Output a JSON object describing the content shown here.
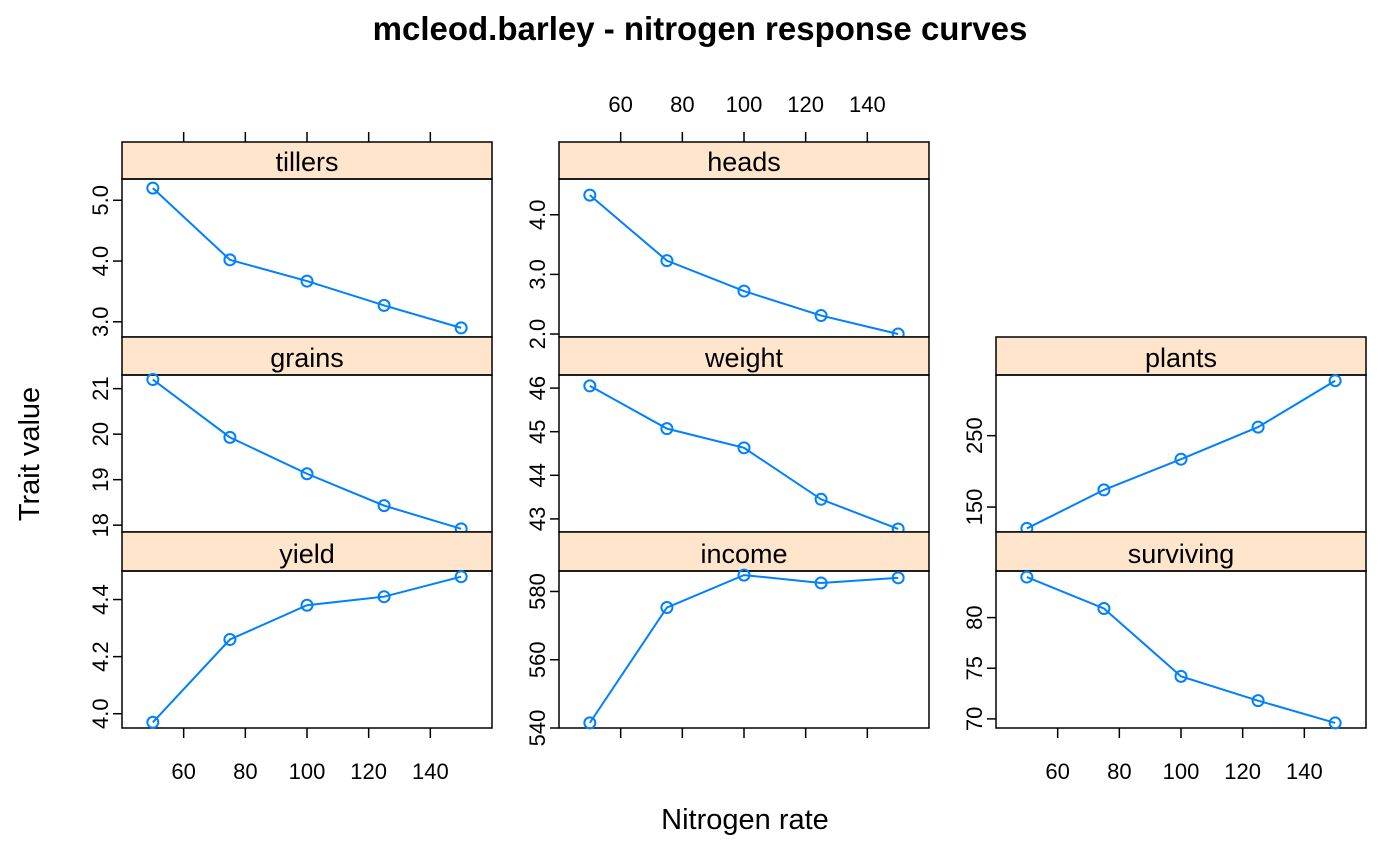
{
  "title": "mcleod.barley - nitrogen response curves",
  "xlabel": "Nitrogen rate",
  "ylabel": "Trait value",
  "colors": {
    "series": "#0080ff",
    "strip": "#ffe5cc",
    "frame": "#000000"
  },
  "chart_data": {
    "type": "line",
    "layout": "lattice 3x3 panels",
    "x": [
      50,
      75,
      100,
      125,
      150
    ],
    "x_ticks": [
      "60",
      "80",
      "100",
      "120",
      "140"
    ],
    "xlim": [
      40,
      160
    ],
    "panels": [
      {
        "name": "tillers",
        "values": [
          5.2,
          4.02,
          3.67,
          3.27,
          2.9
        ],
        "ylim": [
          2.75,
          5.35
        ],
        "y_ticks": [
          3.0,
          4.0,
          5.0
        ],
        "y_tick_labels": [
          "3.0",
          "4.0",
          "5.0"
        ]
      },
      {
        "name": "heads",
        "values": [
          4.33,
          3.23,
          2.72,
          2.31,
          2.0
        ],
        "ylim": [
          1.95,
          4.6
        ],
        "y_ticks": [
          2.0,
          3.0,
          4.0
        ],
        "y_tick_labels": [
          "2.0",
          "3.0",
          "4.0"
        ]
      },
      {
        "name": "grains",
        "values": [
          21.2,
          19.93,
          19.13,
          18.43,
          17.92
        ],
        "ylim": [
          17.85,
          21.3
        ],
        "y_ticks": [
          18,
          19,
          20,
          21
        ],
        "y_tick_labels": [
          "18",
          "19",
          "20",
          "21"
        ]
      },
      {
        "name": "weight",
        "values": [
          46.05,
          45.07,
          44.63,
          43.45,
          42.77
        ],
        "ylim": [
          42.7,
          46.3
        ],
        "y_ticks": [
          43,
          44,
          45,
          46
        ],
        "y_tick_labels": [
          "43",
          "44",
          "45",
          "46"
        ]
      },
      {
        "name": "plants",
        "values": [
          120,
          174,
          217,
          262,
          327
        ],
        "ylim": [
          115,
          335
        ],
        "y_ticks": [
          150,
          250
        ],
        "y_tick_labels": [
          "150",
          "250"
        ]
      },
      {
        "name": "yield",
        "values": [
          3.97,
          4.26,
          4.38,
          4.41,
          4.48
        ],
        "ylim": [
          3.95,
          4.5
        ],
        "y_ticks": [
          4.0,
          4.2,
          4.4
        ],
        "y_tick_labels": [
          "4.0",
          "4.2",
          "4.4"
        ]
      },
      {
        "name": "income",
        "values": [
          541.5,
          575.3,
          584.8,
          582.5,
          584
        ],
        "ylim": [
          540,
          586
        ],
        "y_ticks": [
          540,
          560,
          580
        ],
        "y_tick_labels": [
          "540",
          "560",
          "580"
        ]
      },
      {
        "name": "surviving",
        "values": [
          84.0,
          80.9,
          74.2,
          71.8,
          69.6
        ],
        "ylim": [
          69.1,
          84.6
        ],
        "y_ticks": [
          70,
          75,
          80
        ],
        "y_tick_labels": [
          "70",
          "75",
          "80"
        ]
      }
    ]
  }
}
